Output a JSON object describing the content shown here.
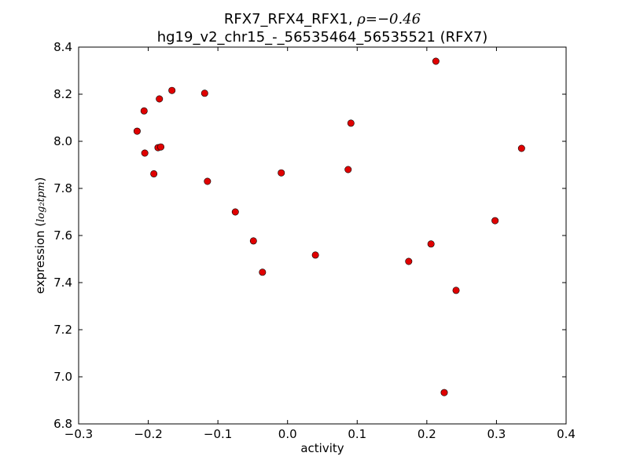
{
  "chart_data": {
    "type": "scatter",
    "title_line1_prefix": "RFX7_RFX4_RFX1, ",
    "title_rho_symbol": "ρ",
    "title_rho_value": "=−0.46",
    "title_line2": "hg19_v2_chr15_-_56535464_56535521 (RFX7)",
    "xlabel": "activity",
    "ylabel_text": "expression (",
    "ylabel_unit": "log₂tpm",
    "ylabel_close": ")",
    "xlim": [
      -0.3,
      0.4
    ],
    "ylim": [
      6.8,
      8.4
    ],
    "xticks": [
      -0.3,
      -0.2,
      -0.1,
      0.0,
      0.1,
      0.2,
      0.3,
      0.4
    ],
    "xtick_labels": [
      "−0.3",
      "−0.2",
      "−0.1",
      "0.0",
      "0.1",
      "0.2",
      "0.3",
      "0.4"
    ],
    "yticks": [
      6.8,
      7.0,
      7.2,
      7.4,
      7.6,
      7.8,
      8.0,
      8.2,
      8.4
    ],
    "ytick_labels": [
      "6.8",
      "7.0",
      "7.2",
      "7.4",
      "7.6",
      "7.8",
      "8.0",
      "8.2",
      "8.4"
    ],
    "grid": false,
    "marker_color": "#e00000",
    "points": [
      {
        "x": -0.216,
        "y": 8.043
      },
      {
        "x": -0.206,
        "y": 8.129
      },
      {
        "x": -0.205,
        "y": 7.95
      },
      {
        "x": -0.192,
        "y": 7.862
      },
      {
        "x": -0.186,
        "y": 7.973
      },
      {
        "x": -0.184,
        "y": 8.18
      },
      {
        "x": -0.182,
        "y": 7.976
      },
      {
        "x": -0.166,
        "y": 8.216
      },
      {
        "x": -0.119,
        "y": 8.204
      },
      {
        "x": -0.115,
        "y": 7.83
      },
      {
        "x": -0.075,
        "y": 7.7
      },
      {
        "x": -0.049,
        "y": 7.577
      },
      {
        "x": -0.036,
        "y": 7.444
      },
      {
        "x": -0.009,
        "y": 7.866
      },
      {
        "x": 0.04,
        "y": 7.517
      },
      {
        "x": 0.087,
        "y": 7.88
      },
      {
        "x": 0.091,
        "y": 8.077
      },
      {
        "x": 0.174,
        "y": 7.49
      },
      {
        "x": 0.206,
        "y": 7.564
      },
      {
        "x": 0.213,
        "y": 8.34
      },
      {
        "x": 0.225,
        "y": 6.933
      },
      {
        "x": 0.242,
        "y": 7.367
      },
      {
        "x": 0.298,
        "y": 7.663
      },
      {
        "x": 0.336,
        "y": 7.97
      }
    ]
  }
}
